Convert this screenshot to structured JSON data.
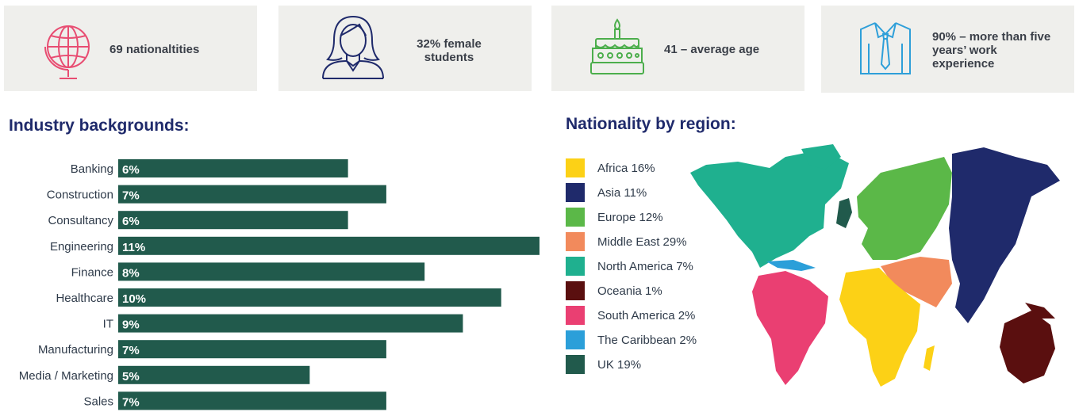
{
  "stats": [
    {
      "text": "69 nationaltities",
      "icon": "globe-icon",
      "color": "#e84d72"
    },
    {
      "text": "32% female students",
      "icon": "female-student-icon",
      "color": "#1f2a6b"
    },
    {
      "text": "41 – average age",
      "icon": "birthday-cake-icon",
      "color": "#4cae4c"
    },
    {
      "text": "90% – more than five years’ work experience",
      "icon": "shirt-tie-icon",
      "color": "#2e9fd9"
    }
  ],
  "industry": {
    "heading": "Industry backgrounds:"
  },
  "nationality": {
    "heading": "Nationality by region:"
  },
  "chart_data": [
    {
      "type": "bar",
      "orientation": "horizontal",
      "title": "Industry backgrounds:",
      "categories": [
        "Banking",
        "Construction",
        "Consultancy",
        "Engineering",
        "Finance",
        "Healthcare",
        "IT",
        "Manufacturing",
        "Media / Marketing",
        "Sales"
      ],
      "values": [
        6,
        7,
        6,
        11,
        8,
        10,
        9,
        7,
        5,
        7
      ],
      "value_labels": [
        "6%",
        "7%",
        "6%",
        "11%",
        "8%",
        "10%",
        "9%",
        "7%",
        "5%",
        "7%"
      ],
      "unit": "%",
      "bar_color": "#215a4c",
      "xlim": [
        0,
        11
      ]
    },
    {
      "type": "map-legend",
      "title": "Nationality by region:",
      "categories": [
        "Africa",
        "Asia",
        "Europe",
        "Middle East",
        "North America",
        "Oceania",
        "South America",
        "The Caribbean",
        "UK"
      ],
      "values": [
        16,
        11,
        12,
        29,
        7,
        1,
        2,
        2,
        19
      ],
      "labels": [
        "Africa 16%",
        "Asia 11%",
        "Europe 12%",
        "Middle East 29%",
        "North America 7%",
        "Oceania 1%",
        "South America 2%",
        "The Caribbean 2%",
        "UK 19%"
      ],
      "colors": [
        "#fcd116",
        "#1f2a6b",
        "#5bb848",
        "#f28a5c",
        "#1fb08f",
        "#5a0f0f",
        "#ea3f72",
        "#2b9fd9",
        "#215a4c"
      ],
      "unit": "%"
    }
  ]
}
